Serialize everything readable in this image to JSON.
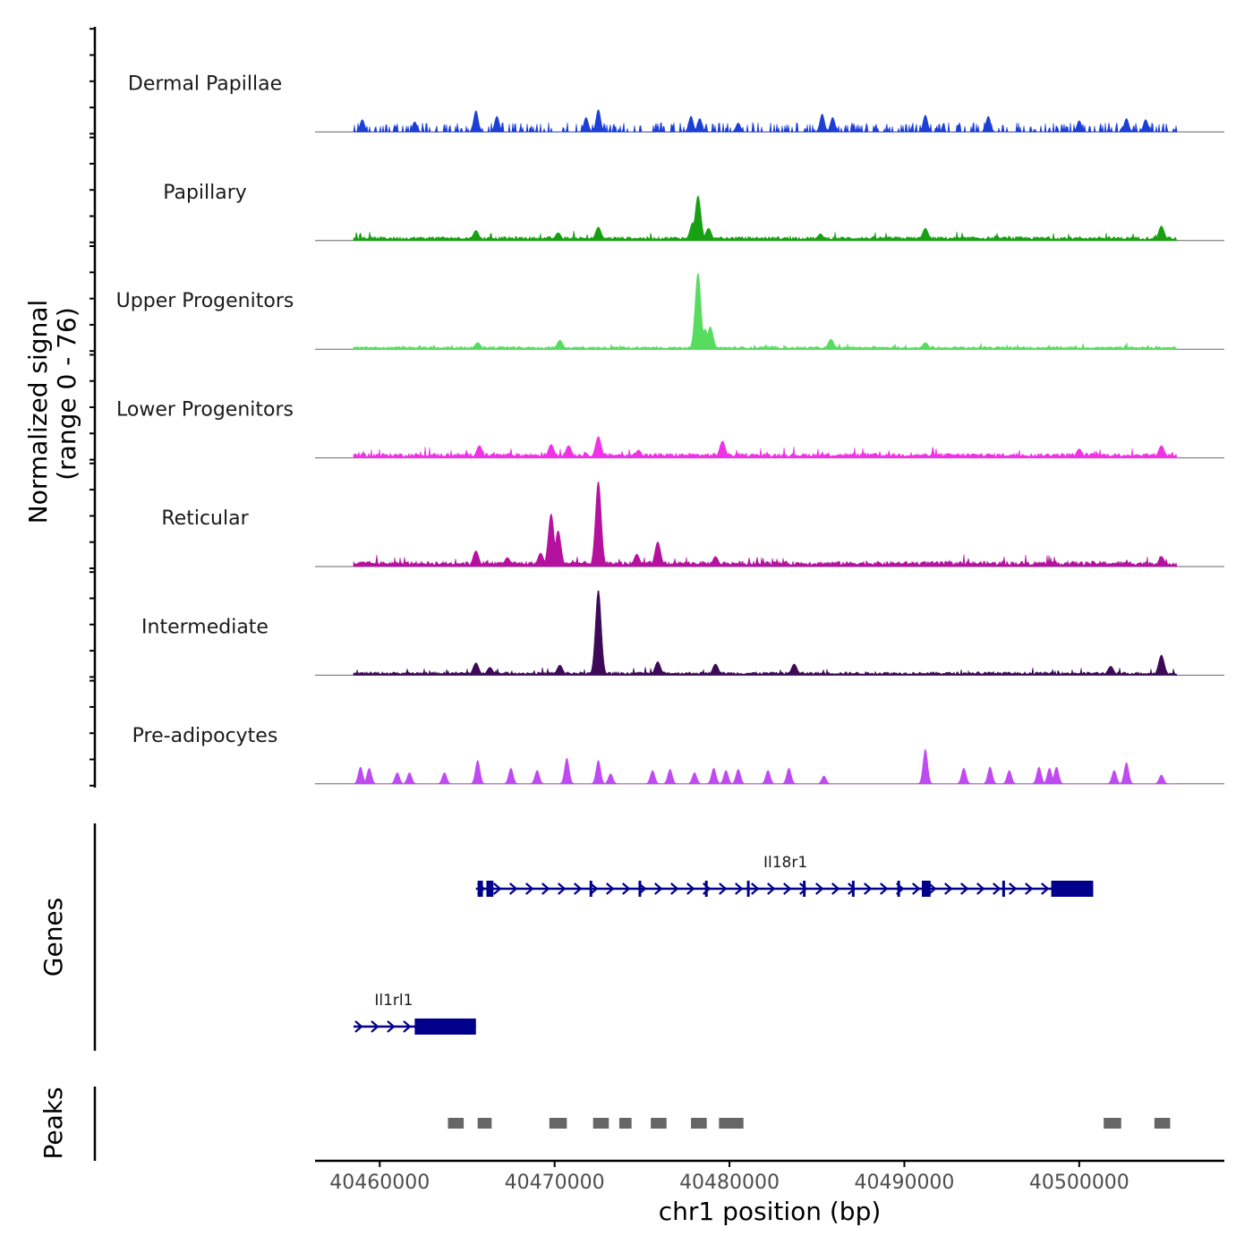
{
  "chart_data": {
    "type": "area",
    "title": "",
    "ylabel_line1": "Normalized signal",
    "ylabel_line2": "(range 0 - 76)",
    "xlabel": "chr1 position (bp)",
    "chromosome": "chr1",
    "xlim": [
      40456300,
      40508300
    ],
    "ylim": [
      0,
      76
    ],
    "xticks": [
      40460000,
      40470000,
      40480000,
      40490000,
      40500000
    ],
    "xtick_labels": [
      "40460000",
      "40470000",
      "40480000",
      "40490000",
      "40500000"
    ],
    "signal_range": [
      40458500,
      40505600
    ],
    "tracks": [
      {
        "name": "Dermal Papillae",
        "color": "#1c3fd6",
        "peaks": [
          {
            "x": 40465500,
            "y": 19
          },
          {
            "x": 40466700,
            "y": 14
          },
          {
            "x": 40472500,
            "y": 20
          },
          {
            "x": 40471800,
            "y": 13
          },
          {
            "x": 40477800,
            "y": 14
          },
          {
            "x": 40478300,
            "y": 12
          },
          {
            "x": 40480500,
            "y": 8
          },
          {
            "x": 40485300,
            "y": 16
          },
          {
            "x": 40485900,
            "y": 13
          },
          {
            "x": 40491200,
            "y": 15
          },
          {
            "x": 40494800,
            "y": 14
          },
          {
            "x": 40502700,
            "y": 12
          },
          {
            "x": 40503800,
            "y": 11
          },
          {
            "x": 40500000,
            "y": 10
          },
          {
            "x": 40462000,
            "y": 9
          },
          {
            "x": 40459000,
            "y": 11
          }
        ],
        "base_level": 6,
        "sparse": true
      },
      {
        "name": "Papillary",
        "color": "#17a112",
        "peaks": [
          {
            "x": 40478200,
            "y": 40
          },
          {
            "x": 40477900,
            "y": 16
          },
          {
            "x": 40478800,
            "y": 11
          },
          {
            "x": 40472500,
            "y": 12
          },
          {
            "x": 40465500,
            "y": 9
          },
          {
            "x": 40491200,
            "y": 11
          },
          {
            "x": 40504700,
            "y": 13
          },
          {
            "x": 40470200,
            "y": 7
          },
          {
            "x": 40485200,
            "y": 6
          }
        ],
        "base_level": 3,
        "sparse": false
      },
      {
        "name": "Upper Progenitors",
        "color": "#58dc5f",
        "peaks": [
          {
            "x": 40478200,
            "y": 68
          },
          {
            "x": 40478600,
            "y": 18
          },
          {
            "x": 40478900,
            "y": 20
          },
          {
            "x": 40470300,
            "y": 8
          },
          {
            "x": 40485800,
            "y": 9
          },
          {
            "x": 40465600,
            "y": 6
          },
          {
            "x": 40491200,
            "y": 6
          }
        ],
        "base_level": 2,
        "sparse": false
      },
      {
        "name": "Lower Progenitors",
        "color": "#f032e6",
        "peaks": [
          {
            "x": 40472500,
            "y": 19
          },
          {
            "x": 40479600,
            "y": 15
          },
          {
            "x": 40465700,
            "y": 11
          },
          {
            "x": 40469800,
            "y": 12
          },
          {
            "x": 40470800,
            "y": 11
          },
          {
            "x": 40504700,
            "y": 11
          },
          {
            "x": 40500000,
            "y": 8
          },
          {
            "x": 40474800,
            "y": 7
          }
        ],
        "base_level": 3.5,
        "sparse": false
      },
      {
        "name": "Reticular",
        "color": "#b4119f",
        "peaks": [
          {
            "x": 40472500,
            "y": 76
          },
          {
            "x": 40469800,
            "y": 47
          },
          {
            "x": 40470200,
            "y": 32
          },
          {
            "x": 40475900,
            "y": 22
          },
          {
            "x": 40469200,
            "y": 12
          },
          {
            "x": 40465500,
            "y": 14
          },
          {
            "x": 40474700,
            "y": 11
          },
          {
            "x": 40479200,
            "y": 9
          },
          {
            "x": 40504700,
            "y": 9
          },
          {
            "x": 40467300,
            "y": 8
          }
        ],
        "base_level": 4,
        "sparse": false
      },
      {
        "name": "Intermediate",
        "color": "#3d0a57",
        "peaks": [
          {
            "x": 40472500,
            "y": 76
          },
          {
            "x": 40504700,
            "y": 18
          },
          {
            "x": 40465500,
            "y": 11
          },
          {
            "x": 40475900,
            "y": 12
          },
          {
            "x": 40479200,
            "y": 10
          },
          {
            "x": 40470300,
            "y": 9
          },
          {
            "x": 40483700,
            "y": 10
          },
          {
            "x": 40501800,
            "y": 8
          },
          {
            "x": 40466300,
            "y": 7
          }
        ],
        "base_level": 2.5,
        "sparse": false
      },
      {
        "name": "Pre-adipocytes",
        "color": "#c04af2",
        "peaks": [
          {
            "x": 40491200,
            "y": 31
          },
          {
            "x": 40470700,
            "y": 23
          },
          {
            "x": 40472500,
            "y": 21
          },
          {
            "x": 40465600,
            "y": 21
          },
          {
            "x": 40458900,
            "y": 15
          },
          {
            "x": 40459400,
            "y": 14
          },
          {
            "x": 40467500,
            "y": 14
          },
          {
            "x": 40469000,
            "y": 12
          },
          {
            "x": 40473200,
            "y": 9
          },
          {
            "x": 40475600,
            "y": 12
          },
          {
            "x": 40476600,
            "y": 13
          },
          {
            "x": 40478000,
            "y": 10
          },
          {
            "x": 40479100,
            "y": 14
          },
          {
            "x": 40479800,
            "y": 12
          },
          {
            "x": 40480500,
            "y": 13
          },
          {
            "x": 40482200,
            "y": 12
          },
          {
            "x": 40483400,
            "y": 14
          },
          {
            "x": 40485400,
            "y": 7
          },
          {
            "x": 40493400,
            "y": 14
          },
          {
            "x": 40494900,
            "y": 15
          },
          {
            "x": 40496000,
            "y": 12
          },
          {
            "x": 40497700,
            "y": 15
          },
          {
            "x": 40498300,
            "y": 14
          },
          {
            "x": 40498700,
            "y": 15
          },
          {
            "x": 40502000,
            "y": 12
          },
          {
            "x": 40502700,
            "y": 19
          },
          {
            "x": 40504700,
            "y": 8
          },
          {
            "x": 40461000,
            "y": 10
          },
          {
            "x": 40461700,
            "y": 10
          },
          {
            "x": 40463700,
            "y": 10
          }
        ],
        "base_level": 0,
        "sparse": true
      }
    ],
    "genes": {
      "label": "Genes",
      "color": "#00008b",
      "items": [
        {
          "name": "Il18r1",
          "start": 40465500,
          "end": 40500800,
          "strand": "+",
          "row": 1,
          "exons": [
            [
              40465600,
              40465900
            ],
            [
              40466100,
              40466500
            ],
            [
              40472000,
              40472100
            ],
            [
              40474800,
              40474950
            ],
            [
              40478600,
              40478700
            ],
            [
              40481000,
              40481100
            ],
            [
              40484200,
              40484300
            ],
            [
              40487000,
              40487100
            ],
            [
              40489600,
              40489700
            ],
            [
              40491000,
              40491500
            ],
            [
              40495600,
              40495700
            ],
            [
              40498400,
              40500800
            ]
          ]
        },
        {
          "name": "Il1rl1",
          "start": 40458500,
          "end": 40465500,
          "strand": "+",
          "row": 2,
          "exons": [
            [
              40462000,
              40465500
            ]
          ]
        }
      ]
    },
    "peaks_track": {
      "label": "Peaks",
      "color": "#666666",
      "regions": [
        [
          40463900,
          40464800
        ],
        [
          40465600,
          40466400
        ],
        [
          40469700,
          40470700
        ],
        [
          40472200,
          40473100
        ],
        [
          40473700,
          40474400
        ],
        [
          40475500,
          40476400
        ],
        [
          40477800,
          40478700
        ],
        [
          40479400,
          40480800
        ],
        [
          40501400,
          40502400
        ],
        [
          40504300,
          40505200
        ]
      ]
    }
  }
}
